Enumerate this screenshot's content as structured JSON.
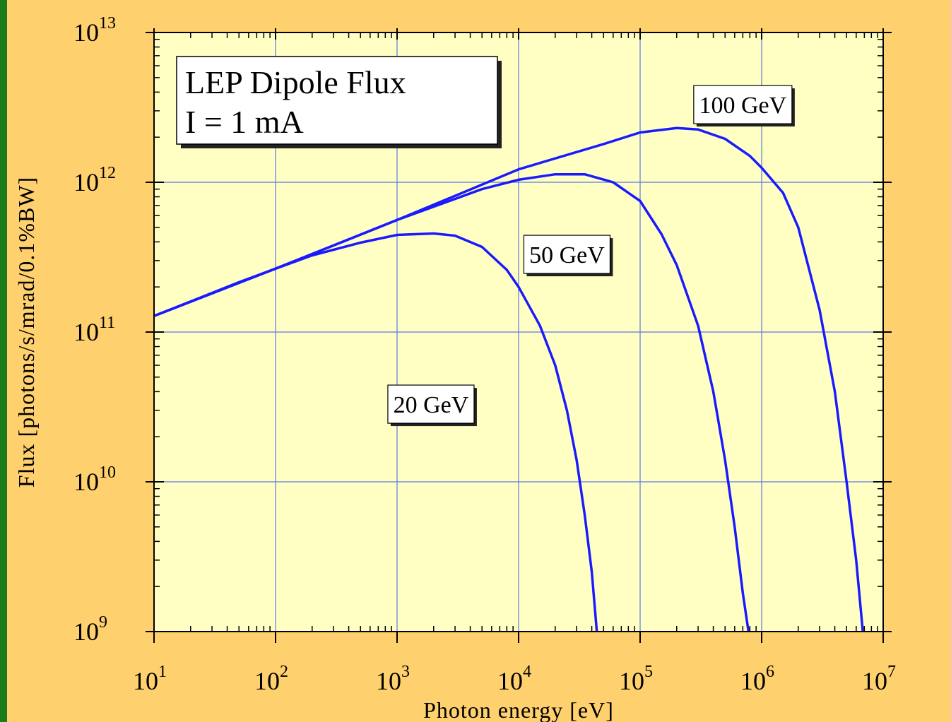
{
  "chart_data": {
    "type": "line",
    "xscale": "log",
    "yscale": "log",
    "xlim": [
      10,
      10000000
    ],
    "ylim": [
      1000000000,
      10000000000000
    ],
    "grid": true,
    "xlabel": "Photon energy [eV]",
    "ylabel": "Flux [photons/s/mrad/0.1%BW]",
    "x_ticks": [
      {
        "base": "10",
        "exp": "1",
        "value": 10
      },
      {
        "base": "10",
        "exp": "2",
        "value": 100
      },
      {
        "base": "10",
        "exp": "3",
        "value": 1000
      },
      {
        "base": "10",
        "exp": "4",
        "value": 10000
      },
      {
        "base": "10",
        "exp": "5",
        "value": 100000
      },
      {
        "base": "10",
        "exp": "6",
        "value": 1000000
      },
      {
        "base": "10",
        "exp": "7",
        "value": 10000000
      }
    ],
    "y_ticks": [
      {
        "base": "10",
        "exp": "9",
        "value": 1000000000
      },
      {
        "base": "10",
        "exp": "10",
        "value": 10000000000
      },
      {
        "base": "10",
        "exp": "11",
        "value": 100000000000
      },
      {
        "base": "10",
        "exp": "12",
        "value": 1000000000000
      },
      {
        "base": "10",
        "exp": "13",
        "value": 10000000000000
      }
    ],
    "annotation_box": {
      "line1": "LEP Dipole Flux",
      "line2": "I = 1 mA"
    },
    "series": [
      {
        "name": "20 GeV",
        "label_at": {
          "x": 1900,
          "y": 33000000000
        },
        "points": [
          [
            10,
            128000000000
          ],
          [
            20,
            160000000000
          ],
          [
            50,
            215000000000
          ],
          [
            100,
            265000000000
          ],
          [
            200,
            325000000000
          ],
          [
            500,
            395000000000
          ],
          [
            1000,
            445000000000
          ],
          [
            2000,
            455000000000
          ],
          [
            3000,
            440000000000
          ],
          [
            5000,
            370000000000
          ],
          [
            8000,
            260000000000
          ],
          [
            10000,
            200000000000
          ],
          [
            15000,
            110000000000
          ],
          [
            20000,
            60000000000
          ],
          [
            25000,
            30000000000
          ],
          [
            30000,
            14000000000
          ],
          [
            35000,
            6000000000
          ],
          [
            40000,
            2500000000
          ],
          [
            44000,
            1000000000
          ]
        ]
      },
      {
        "name": "50 GeV",
        "label_at": {
          "x": 25000,
          "y": 330000000000
        },
        "points": [
          [
            10,
            128000000000
          ],
          [
            100,
            265000000000
          ],
          [
            1000,
            560000000000
          ],
          [
            5000,
            900000000000
          ],
          [
            10000,
            1040000000000
          ],
          [
            20000,
            1130000000000
          ],
          [
            35000,
            1130000000000
          ],
          [
            60000,
            1000000000000
          ],
          [
            100000,
            750000000000
          ],
          [
            150000,
            450000000000
          ],
          [
            200000,
            280000000000
          ],
          [
            300000,
            110000000000
          ],
          [
            400000,
            40000000000
          ],
          [
            500000,
            14000000000
          ],
          [
            600000,
            5000000000
          ],
          [
            700000,
            1800000000
          ],
          [
            780000,
            1000000000
          ]
        ]
      },
      {
        "name": "100 GeV",
        "label_at": {
          "x": 700000,
          "y": 3300000000000
        },
        "points": [
          [
            10,
            128000000000
          ],
          [
            100,
            265000000000
          ],
          [
            1000,
            560000000000
          ],
          [
            10000,
            1220000000000
          ],
          [
            50000,
            1800000000000
          ],
          [
            100000,
            2150000000000
          ],
          [
            200000,
            2300000000000
          ],
          [
            300000,
            2250000000000
          ],
          [
            500000,
            1950000000000
          ],
          [
            800000,
            1500000000000
          ],
          [
            1000000,
            1250000000000
          ],
          [
            1500000,
            850000000000
          ],
          [
            2000000,
            500000000000
          ],
          [
            3000000,
            140000000000
          ],
          [
            4000000,
            40000000000
          ],
          [
            5000000,
            10000000000
          ],
          [
            6000000,
            3000000000
          ],
          [
            6800000,
            1000000000
          ]
        ]
      }
    ]
  }
}
